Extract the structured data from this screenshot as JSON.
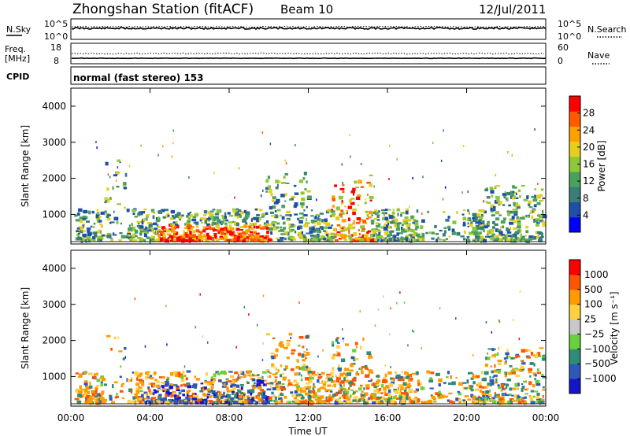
{
  "header": {
    "station": "Zhongshan Station (fitACF)",
    "beam": "Beam 10",
    "date": "12/Jul/2011"
  },
  "strips": {
    "nsky_label": "N.Sky",
    "nsearch_label": "N.Search",
    "freq_label_1": "Freq.",
    "freq_label_2": "[MHz]",
    "nave_label": "Nave",
    "cpid_label": "CPID",
    "cpid_text": "normal (fast stereo) 153",
    "noise_ticks": [
      "10^5",
      "10^0"
    ],
    "freq_ticks": [
      "18",
      "8"
    ],
    "nave_ticks": [
      "60",
      "0"
    ]
  },
  "chart_data": [
    {
      "type": "heatmap",
      "panel": "power",
      "ylabel": "Slant Range [km]",
      "xlabel": "",
      "ylim": [
        180,
        4500
      ],
      "yticks": [
        "1000",
        "2000",
        "3000",
        "4000"
      ],
      "colorbar": {
        "label": "Power [dB]",
        "ticks": [
          "28",
          "24",
          "20",
          "16",
          "12",
          "8",
          "4"
        ],
        "range": [
          0,
          30
        ],
        "colors": [
          "#0000ff",
          "#1f4fa8",
          "#3a7e7a",
          "#4aa15a",
          "#8fc73a",
          "#e5cf1e",
          "#ffa000",
          "#ff5a00",
          "#ff0000"
        ]
      }
    },
    {
      "type": "heatmap",
      "panel": "velocity",
      "ylabel": "Slant Range [km]",
      "xlabel": "Time UT",
      "ylim": [
        180,
        4500
      ],
      "yticks": [
        "1000",
        "2000",
        "3000",
        "4000"
      ],
      "xticks": [
        "00:00",
        "04:00",
        "08:00",
        "12:00",
        "16:00",
        "20:00",
        "00:00"
      ],
      "colorbar": {
        "label": "Velocity [m s⁻¹]",
        "ticks": [
          "1000",
          "500",
          "100",
          "25",
          "−25",
          "−100",
          "−500",
          "−1000"
        ],
        "colors": [
          "#1515c8",
          "#2f59b8",
          "#2f8c78",
          "#6ad03a",
          "#c8c8c8",
          "#ffd040",
          "#ff9a00",
          "#ff5500",
          "#ff0000"
        ]
      }
    }
  ]
}
